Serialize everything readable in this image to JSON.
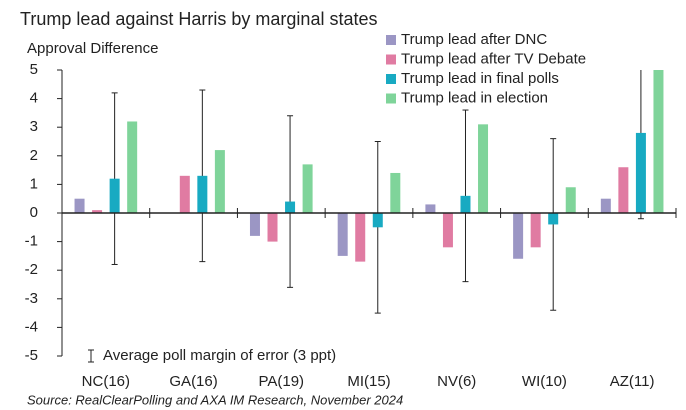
{
  "chart_data": {
    "type": "bar",
    "title": "Trump lead against Harris by marginal states",
    "y_label": "Approval Difference",
    "source": "Source: RealClearPolling and AXA IM Research, November 2024",
    "categories": [
      "NC(16)",
      "GA(16)",
      "PA(19)",
      "MI(15)",
      "NV(6)",
      "WI(10)",
      "AZ(11)"
    ],
    "series": [
      {
        "name": "Trump lead after DNC",
        "color": "#9b96c4",
        "values": [
          0.5,
          null,
          -0.8,
          -1.5,
          0.3,
          -1.6,
          0.5
        ]
      },
      {
        "name": "Trump lead after TV Debate",
        "color": "#e07ba2",
        "values": [
          0.1,
          1.3,
          -1.0,
          -1.7,
          -1.2,
          -1.2,
          1.6
        ]
      },
      {
        "name": "Trump lead in final polls",
        "color": "#18aac2",
        "values": [
          1.2,
          1.3,
          0.4,
          -0.5,
          0.6,
          -0.4,
          2.8
        ]
      },
      {
        "name": "Trump lead in election",
        "color": "#7fd49a",
        "values": [
          3.2,
          2.2,
          1.7,
          1.4,
          3.1,
          0.9,
          5.0
        ]
      }
    ],
    "error": 3,
    "error_series": 2,
    "error_label": "Average poll margin of error (3 ppt)",
    "ylim": [
      -5,
      5
    ],
    "yticks": [
      -5,
      -4,
      -3,
      -2,
      -1,
      0,
      1,
      2,
      3,
      4,
      5
    ],
    "legend": "top-right"
  }
}
